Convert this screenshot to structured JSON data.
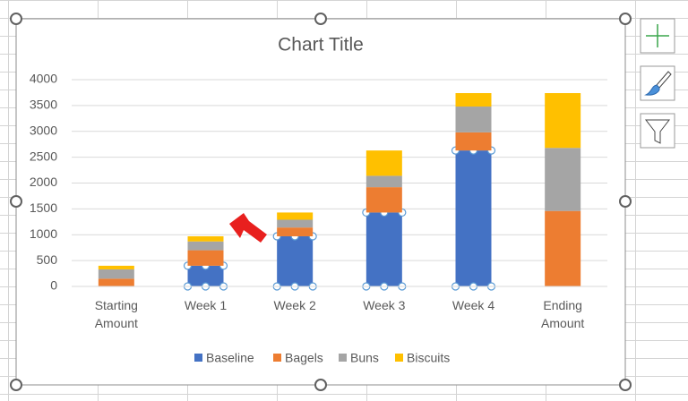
{
  "chart_data": {
    "type": "stacked_bar",
    "title": "Chart Title",
    "categories": [
      "Starting Amount",
      "Week 1",
      "Week 2",
      "Week 3",
      "Week 4",
      "Ending Amount"
    ],
    "series": [
      {
        "name": "Baseline",
        "color": "#4472c4",
        "values": [
          0,
          400,
          970,
          1430,
          2630,
          0
        ]
      },
      {
        "name": "Bagels",
        "color": "#ed7d31",
        "values": [
          150,
          300,
          170,
          490,
          350,
          1460
        ]
      },
      {
        "name": "Buns",
        "color": "#a5a5a5",
        "values": [
          180,
          170,
          150,
          220,
          500,
          1220
        ]
      },
      {
        "name": "Biscuits",
        "color": "#ffc000",
        "values": [
          70,
          100,
          140,
          490,
          260,
          1060
        ]
      }
    ],
    "ylim": [
      0,
      4000
    ],
    "yticks": [
      0,
      500,
      1000,
      1500,
      2000,
      2500,
      3000,
      3500,
      4000
    ],
    "grid": true,
    "legend": "bottom"
  }
}
